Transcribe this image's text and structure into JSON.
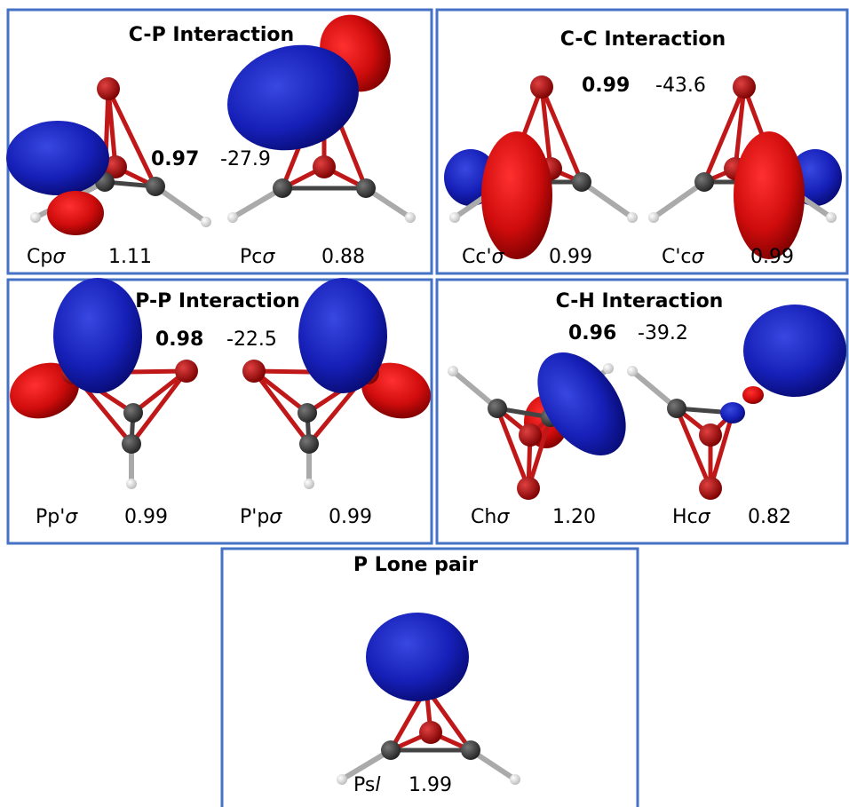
{
  "panels": [
    {
      "title": "C-P Interaction",
      "overlap": "0.97",
      "energy": "-27.9",
      "orbitals": [
        {
          "label": [
            "Cp",
            "σ"
          ],
          "occupancy": "1.11"
        },
        {
          "label": [
            "Pc",
            "σ"
          ],
          "occupancy": "0.88"
        }
      ]
    },
    {
      "title": "C-C Interaction",
      "overlap": "0.99",
      "energy": "-43.6",
      "orbitals": [
        {
          "label": [
            "Cc'",
            "σ"
          ],
          "occupancy": "0.99"
        },
        {
          "label": [
            "C'c",
            "σ"
          ],
          "occupancy": "0.99"
        }
      ]
    },
    {
      "title": "P-P Interaction",
      "overlap": "0.98",
      "energy": "-22.5",
      "orbitals": [
        {
          "label": [
            "Pp'",
            "σ"
          ],
          "occupancy": "0.99"
        },
        {
          "label": [
            "P'p",
            "σ"
          ],
          "occupancy": "0.99"
        }
      ]
    },
    {
      "title": "C-H Interaction",
      "overlap": "0.96",
      "energy": "-39.2",
      "orbitals": [
        {
          "label": [
            "Ch",
            "σ"
          ],
          "occupancy": "1.20"
        },
        {
          "label": [
            "Hc",
            "σ"
          ],
          "occupancy": "0.82"
        }
      ]
    },
    {
      "title": "P Lone pair",
      "orbitals": [
        {
          "label": [
            "Ps",
            "l"
          ],
          "occupancy": "1.99"
        }
      ]
    }
  ]
}
